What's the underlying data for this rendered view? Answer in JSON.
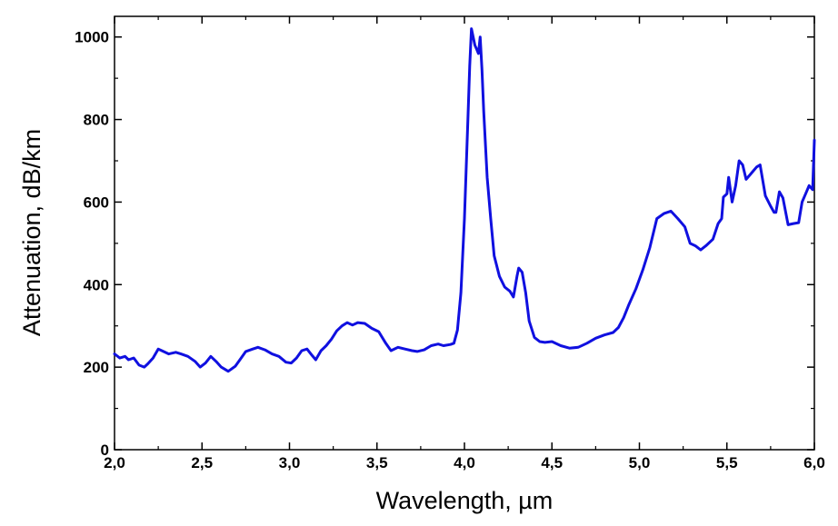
{
  "chart_data": {
    "type": "line",
    "title": "",
    "xlabel": "Wavelength, µm",
    "ylabel": "Attenuation, dB/km",
    "xlim": [
      2.0,
      6.0
    ],
    "ylim": [
      0,
      1050
    ],
    "x_ticks": [
      2.0,
      2.5,
      3.0,
      3.5,
      4.0,
      4.5,
      5.0,
      5.5,
      6.0
    ],
    "x_tick_labels": [
      "2,0",
      "2,5",
      "3,0",
      "3,5",
      "4,0",
      "4,5",
      "5,0",
      "5,5",
      "6,0"
    ],
    "y_ticks": [
      0,
      200,
      400,
      600,
      800,
      1000
    ],
    "y_tick_labels": [
      "0",
      "200",
      "400",
      "600",
      "800",
      "1000"
    ],
    "grid": false,
    "line_color": "#1010e0",
    "series": [
      {
        "x": [
          2.0,
          2.03,
          2.06,
          2.08,
          2.11,
          2.14,
          2.17,
          2.19,
          2.22,
          2.25,
          2.27,
          2.31,
          2.35,
          2.38,
          2.42,
          2.46,
          2.49,
          2.52,
          2.55,
          2.58,
          2.61,
          2.65,
          2.69,
          2.72,
          2.75,
          2.79,
          2.82,
          2.86,
          2.9,
          2.94,
          2.98,
          3.01,
          3.04,
          3.07,
          3.1,
          3.13,
          3.15,
          3.18,
          3.21,
          3.24,
          3.27,
          3.3,
          3.33,
          3.36,
          3.39,
          3.43,
          3.47,
          3.51,
          3.55,
          3.58,
          3.62,
          3.66,
          3.7,
          3.73,
          3.77,
          3.81,
          3.85,
          3.88,
          3.92,
          3.94,
          3.96,
          3.98,
          4.0,
          4.02,
          4.03,
          4.04,
          4.05,
          4.06,
          4.07,
          4.08,
          4.09,
          4.1,
          4.11,
          4.13,
          4.15,
          4.17,
          4.2,
          4.23,
          4.26,
          4.28,
          4.3,
          4.31,
          4.33,
          4.35,
          4.37,
          4.4,
          4.43,
          4.46,
          4.5,
          4.55,
          4.6,
          4.65,
          4.7,
          4.75,
          4.8,
          4.85,
          4.88,
          4.91,
          4.94,
          4.98,
          5.02,
          5.06,
          5.1,
          5.14,
          5.18,
          5.22,
          5.26,
          5.29,
          5.32,
          5.35,
          5.38,
          5.42,
          5.45,
          5.47,
          5.48,
          5.5,
          5.51,
          5.53,
          5.55,
          5.57,
          5.59,
          5.61,
          5.63,
          5.65,
          5.67,
          5.69,
          5.72,
          5.75,
          5.77,
          5.78,
          5.8,
          5.82,
          5.85,
          5.88,
          5.91,
          5.93,
          5.95,
          5.97,
          5.99,
          6.0
        ],
        "y": [
          232,
          222,
          226,
          218,
          222,
          205,
          200,
          208,
          222,
          244,
          240,
          232,
          236,
          232,
          226,
          214,
          200,
          210,
          226,
          214,
          200,
          190,
          202,
          220,
          238,
          244,
          248,
          242,
          232,
          226,
          212,
          210,
          222,
          240,
          244,
          228,
          218,
          240,
          252,
          268,
          288,
          300,
          308,
          302,
          308,
          306,
          294,
          286,
          258,
          240,
          248,
          244,
          240,
          238,
          242,
          252,
          256,
          252,
          255,
          258,
          290,
          380,
          560,
          800,
          930,
          1020,
          1000,
          980,
          970,
          960,
          1000,
          920,
          820,
          660,
          560,
          470,
          420,
          394,
          384,
          370,
          420,
          440,
          430,
          380,
          312,
          272,
          262,
          260,
          262,
          252,
          246,
          248,
          258,
          270,
          278,
          284,
          296,
          320,
          352,
          390,
          436,
          490,
          560,
          572,
          578,
          560,
          540,
          500,
          494,
          484,
          494,
          510,
          548,
          560,
          612,
          620,
          660,
          600,
          640,
          700,
          690,
          655,
          665,
          675,
          685,
          690,
          615,
          590,
          575,
          575,
          625,
          610,
          545,
          548,
          550,
          600,
          620,
          640,
          630,
          750
        ]
      }
    ]
  }
}
